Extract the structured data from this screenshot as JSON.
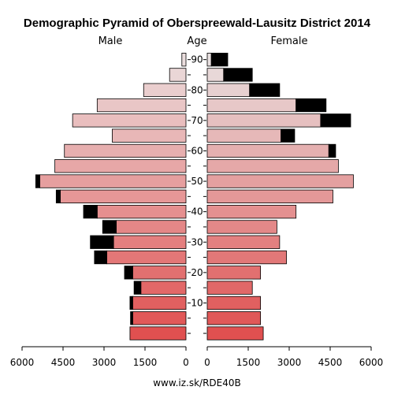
{
  "chart_data": {
    "type": "bar",
    "title": "Demographic Pyramid of Oberspreewald-Lausitz District 2014",
    "left_label": "Male",
    "center_label": "Age",
    "right_label": "Female",
    "footer": "www.iz.sk/RDE40B",
    "x_ticks": [
      "6000",
      "4500",
      "3000",
      "1500",
      "0",
      "0",
      "1500",
      "3000",
      "4500",
      "6000"
    ],
    "xlim": [
      0,
      6000
    ],
    "age_ticks": [
      "90",
      "80",
      "70",
      "60",
      "50",
      "40",
      "30",
      "20",
      "10"
    ],
    "age_groups": [
      "0-4",
      "5-9",
      "10-14",
      "15-19",
      "20-24",
      "25-29",
      "30-34",
      "35-39",
      "40-44",
      "45-49",
      "50-54",
      "55-59",
      "60-64",
      "65-69",
      "70-74",
      "75-79",
      "80-84",
      "85-89",
      "90+"
    ],
    "male_base": [
      2050,
      1950,
      1950,
      1650,
      1950,
      2900,
      2650,
      2550,
      3250,
      4600,
      5350,
      4800,
      4450,
      2700,
      4150,
      3250,
      1550,
      600,
      150
    ],
    "male_excess": [
      0,
      80,
      100,
      250,
      300,
      450,
      850,
      500,
      500,
      150,
      150,
      0,
      0,
      0,
      0,
      0,
      0,
      0,
      0
    ],
    "female_base": [
      2050,
      1950,
      1950,
      1650,
      1950,
      2900,
      2650,
      2550,
      3250,
      4600,
      5350,
      4800,
      4450,
      2700,
      4150,
      3250,
      1550,
      600,
      150
    ],
    "female_excess": [
      0,
      0,
      0,
      0,
      0,
      0,
      0,
      0,
      0,
      0,
      0,
      0,
      250,
      500,
      1100,
      1100,
      1100,
      1050,
      600
    ],
    "excess_color": "#000000",
    "grid": false
  }
}
